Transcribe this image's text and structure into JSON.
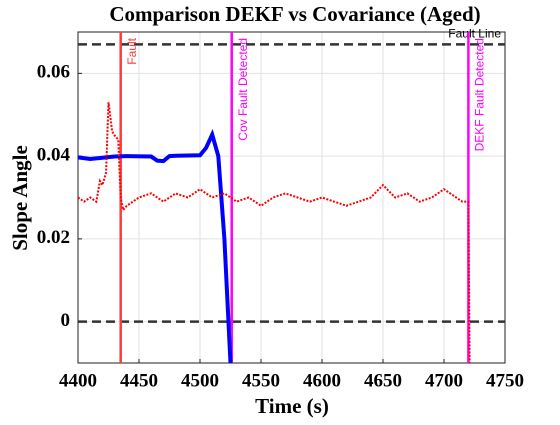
{
  "chart_data": {
    "type": "line",
    "title": "Comparison DEKF vs Covariance (Aged)",
    "x_label": "Time (s)",
    "y_label": "Slope Angle",
    "xlim": [
      4400,
      4750
    ],
    "xticks": [
      4400,
      4450,
      4500,
      4550,
      4600,
      4650,
      4700,
      4750
    ],
    "ylim": [
      -0.01,
      0.07
    ],
    "yticks": [
      0,
      0.02,
      0.04,
      0.06
    ],
    "grid": true,
    "series": [
      {
        "color": "#0000ff",
        "style": "solid",
        "x": [
          4400,
          4410,
          4420,
          4430,
          4440,
          4460,
          4465,
          4470,
          4475,
          4480,
          4500,
          4505,
          4510,
          4515,
          4520,
          4523,
          4525
        ],
        "values": [
          0.0397,
          0.0393,
          0.0396,
          0.0399,
          0.04,
          0.0399,
          0.0389,
          0.0388,
          0.04,
          0.0401,
          0.0402,
          0.042,
          0.0452,
          0.04,
          0.02,
          0.002,
          -0.01
        ]
      },
      {
        "color": "#ff0000",
        "style": "dotted",
        "x": [
          4400,
          4405,
          4410,
          4415,
          4418,
          4420,
          4423,
          4425,
          4428,
          4430,
          4433,
          4435,
          4437,
          4440,
          4445,
          4450,
          4460,
          4470,
          4480,
          4490,
          4500,
          4510,
          4520,
          4530,
          4540,
          4550,
          4560,
          4570,
          4580,
          4590,
          4600,
          4610,
          4620,
          4630,
          4640,
          4650,
          4660,
          4670,
          4680,
          4690,
          4700,
          4710,
          4715,
          4720,
          4721
        ],
        "values": [
          0.03,
          0.029,
          0.03,
          0.029,
          0.034,
          0.033,
          0.036,
          0.053,
          0.046,
          0.045,
          0.044,
          0.03,
          0.027,
          0.028,
          0.029,
          0.03,
          0.031,
          0.029,
          0.031,
          0.03,
          0.032,
          0.03,
          0.031,
          0.029,
          0.03,
          0.028,
          0.03,
          0.031,
          0.03,
          0.029,
          0.03,
          0.029,
          0.028,
          0.029,
          0.03,
          0.033,
          0.03,
          0.031,
          0.029,
          0.03,
          0.032,
          0.03,
          0.029,
          0.029,
          -0.01
        ]
      }
    ],
    "hlines": [
      {
        "value": 0.067,
        "label": "Fault Line"
      },
      {
        "value": 0
      }
    ],
    "vlines": [
      {
        "value": 4435,
        "label": "Fault",
        "color": "#ff3b3b"
      },
      {
        "value": 4526,
        "label": "Cov Fault Detected",
        "color": "#ff00ff"
      },
      {
        "value": 4720,
        "label": "DEKF Fault Detected",
        "color": "#ff00ff"
      }
    ]
  }
}
